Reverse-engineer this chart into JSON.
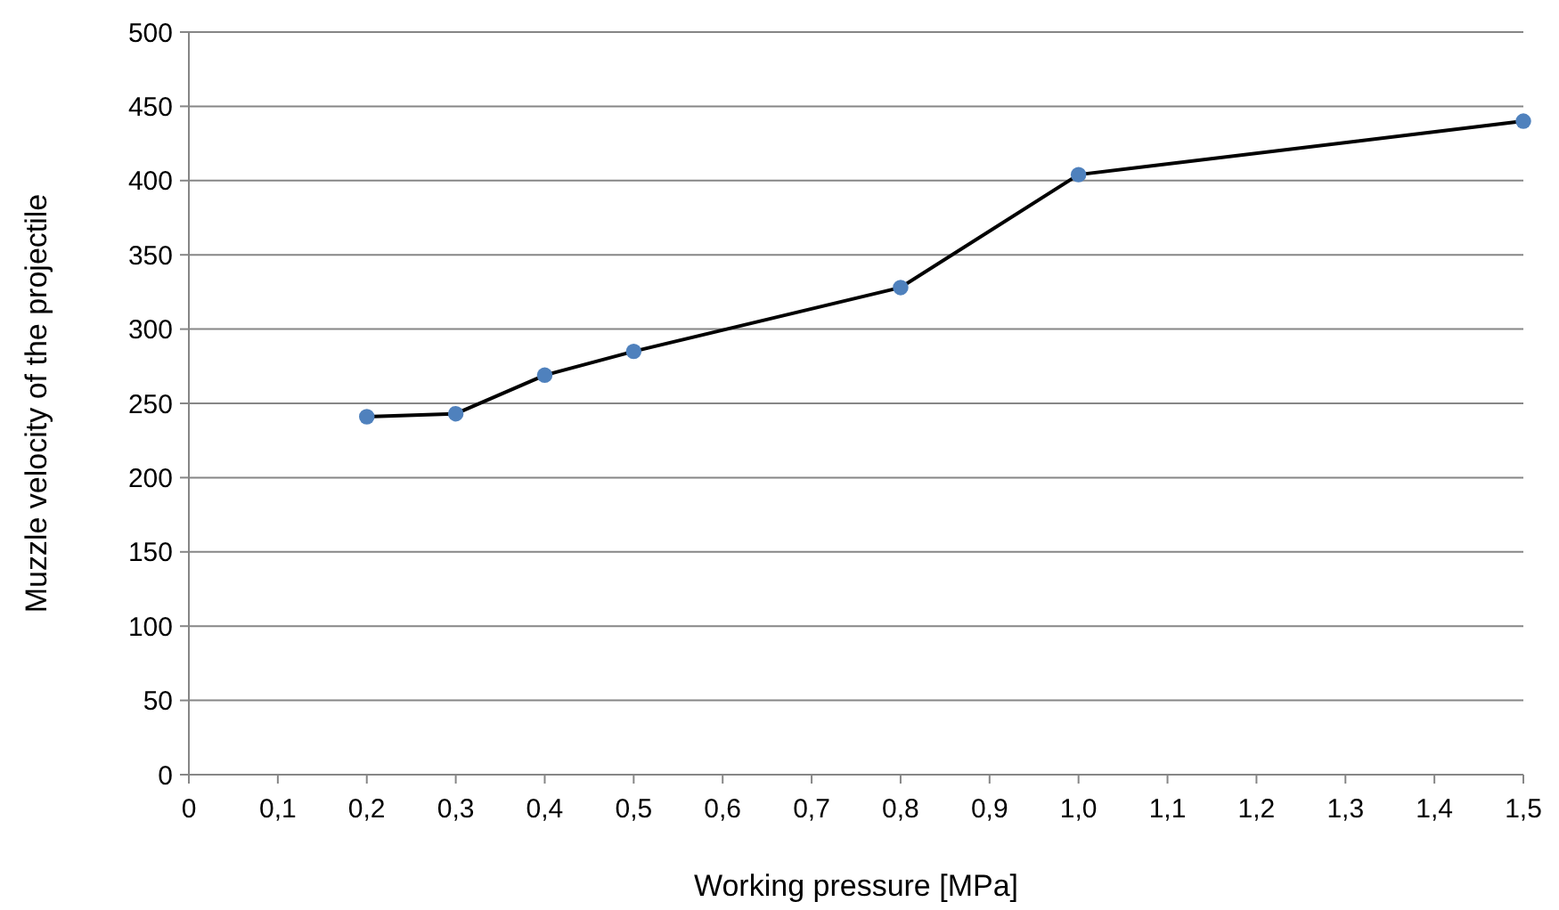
{
  "chart_data": {
    "type": "line",
    "xlabel": "Working pressure [MPa]",
    "ylabel": "Muzzle velocity of the projectile",
    "xlim": [
      0,
      1.5
    ],
    "ylim": [
      0,
      500
    ],
    "xticks": [
      0,
      {
        "value": 0.1,
        "label": "0,1"
      },
      {
        "value": 0.2,
        "label": "0,2"
      },
      {
        "value": 0.3,
        "label": "0,3"
      },
      {
        "value": 0.4,
        "label": "0,4"
      },
      {
        "value": 0.5,
        "label": "0,5"
      },
      {
        "value": 0.6,
        "label": "0,6"
      },
      {
        "value": 0.7,
        "label": "0,7"
      },
      {
        "value": 0.8,
        "label": "0,8"
      },
      {
        "value": 0.9,
        "label": "0,9"
      },
      {
        "value": 1,
        "label": "1,0"
      },
      {
        "value": 1.1,
        "label": "1,1"
      },
      {
        "value": 1.2,
        "label": "1,2"
      },
      {
        "value": 1.3,
        "label": "1,3"
      },
      {
        "value": 1.4,
        "label": "1,4"
      },
      {
        "value": 1.5,
        "label": "1,5"
      }
    ],
    "yticks": [
      0,
      50,
      100,
      150,
      200,
      250,
      300,
      350,
      400,
      450,
      500
    ],
    "grid": "y",
    "x": [
      0.2,
      0.3,
      0.4,
      0.5,
      0.8,
      1.0,
      1.5
    ],
    "series": [
      {
        "color": "#000000",
        "marker": "none",
        "line_style": "solid",
        "values": [
          241,
          243,
          269,
          285,
          328,
          404,
          440
        ]
      },
      {
        "type": "scatter",
        "color": "#4f81bd",
        "marker": "circle",
        "values": [
          241,
          243,
          269,
          285,
          328,
          404,
          440
        ]
      }
    ]
  }
}
